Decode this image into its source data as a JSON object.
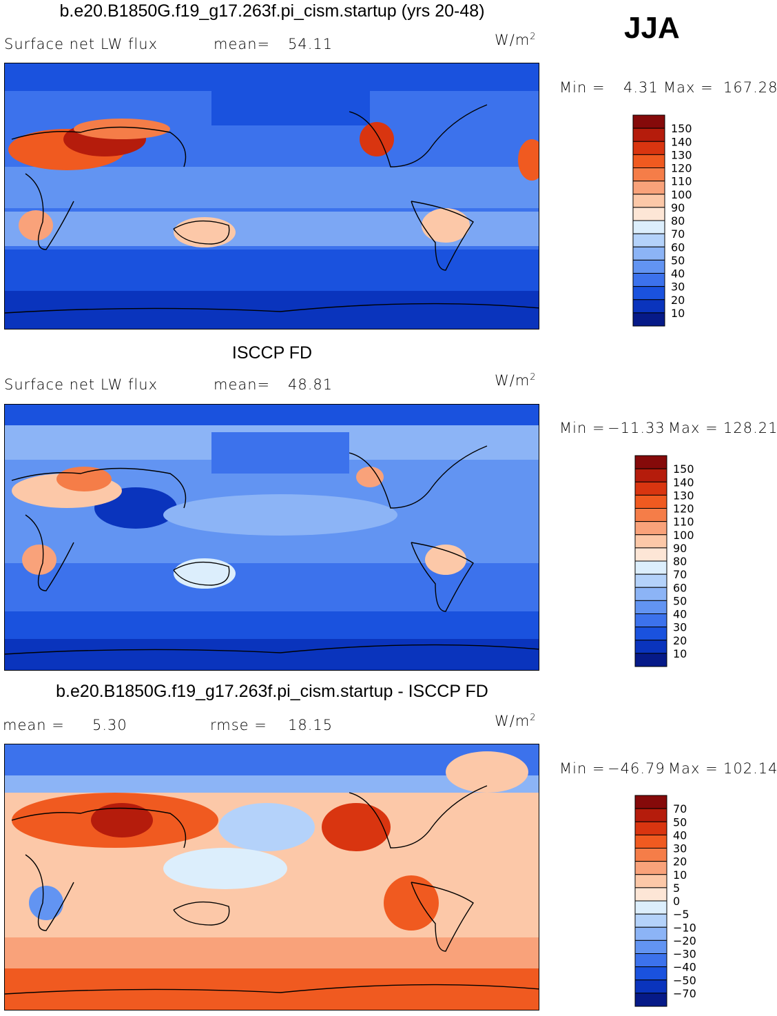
{
  "season": "JJA",
  "units_label": "W/m",
  "units_sup": "2",
  "chart_data": [
    {
      "type": "heatmap",
      "title": "b.e20.B1850G.f19_g17.263f.pi_cism.startup (yrs 20-48)",
      "left_label": "Surface net LW flux",
      "stat_label": "mean=",
      "stat_value": "54.11",
      "min_label": "Min =",
      "min_value": "4.31",
      "max_label": "Max =",
      "max_value": "167.28",
      "units": "W/m2",
      "colorbar_levels": [
        "150",
        "140",
        "130",
        "120",
        "110",
        "100",
        "90",
        "80",
        "70",
        "60",
        "50",
        "40",
        "30",
        "20",
        "10"
      ],
      "colorbar_colors": [
        "#850a0a",
        "#b51c0c",
        "#d93510",
        "#f05a20",
        "#f57d48",
        "#f9a27a",
        "#fcc8a8",
        "#fde6d6",
        "#dceefc",
        "#b4d2fa",
        "#8cb4f6",
        "#6294f2",
        "#3c72ec",
        "#1a52de",
        "#0a34bd",
        "#061a88"
      ]
    },
    {
      "type": "heatmap",
      "title": "ISCCP FD",
      "left_label": "Surface net LW flux",
      "stat_label": "mean=",
      "stat_value": "48.81",
      "min_label": "Min =",
      "min_value": "−11.33",
      "max_label": "Max =",
      "max_value": "128.21",
      "units": "W/m2",
      "colorbar_levels": [
        "150",
        "140",
        "130",
        "120",
        "110",
        "100",
        "90",
        "80",
        "70",
        "60",
        "50",
        "40",
        "30",
        "20",
        "10"
      ],
      "colorbar_colors": [
        "#850a0a",
        "#b51c0c",
        "#d93510",
        "#f05a20",
        "#f57d48",
        "#f9a27a",
        "#fcc8a8",
        "#fde6d6",
        "#dceefc",
        "#b4d2fa",
        "#8cb4f6",
        "#6294f2",
        "#3c72ec",
        "#1a52de",
        "#0a34bd",
        "#061a88"
      ]
    },
    {
      "type": "heatmap",
      "title": "b.e20.B1850G.f19_g17.263f.pi_cism.startup - ISCCP FD",
      "left_label": "mean =",
      "left_value": "5.30",
      "stat_label": "rmse =",
      "stat_value": "18.15",
      "min_label": "Min =",
      "min_value": "−46.79",
      "max_label": "Max =",
      "max_value": "102.14",
      "units": "W/m2",
      "colorbar_levels": [
        "70",
        "50",
        "40",
        "30",
        "20",
        "10",
        "5",
        "0",
        "−5",
        "−10",
        "−20",
        "−30",
        "−40",
        "−50",
        "−70"
      ],
      "colorbar_colors": [
        "#850a0a",
        "#b51c0c",
        "#d93510",
        "#f05a20",
        "#f57d48",
        "#f9a27a",
        "#fcc8a8",
        "#fde6d6",
        "#dceefc",
        "#b4d2fa",
        "#8cb4f6",
        "#6294f2",
        "#3c72ec",
        "#1a52de",
        "#0a34bd",
        "#061a88"
      ]
    }
  ]
}
